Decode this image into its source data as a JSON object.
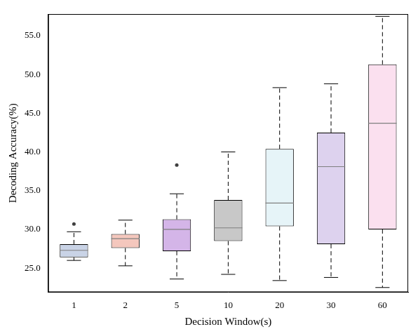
{
  "chart_data": {
    "type": "box",
    "x_label": "Decision Window(s)",
    "y_label": "Decoding Accuracy(%)",
    "categories": [
      "1",
      "2",
      "5",
      "10",
      "20",
      "30",
      "60"
    ],
    "whisker_low": [
      26.0,
      25.3,
      23.6,
      24.2,
      23.4,
      23.8,
      22.5
    ],
    "q1": [
      26.4,
      27.6,
      27.2,
      28.5,
      30.4,
      28.1,
      30.0
    ],
    "median": [
      27.3,
      28.8,
      30.0,
      30.2,
      33.4,
      38.1,
      43.7
    ],
    "q3": [
      28.1,
      29.4,
      31.3,
      33.8,
      40.4,
      42.5,
      51.3
    ],
    "whisker_high": [
      29.7,
      31.2,
      34.6,
      40.0,
      48.3,
      48.8,
      57.5
    ],
    "outliers": [
      [
        30.7
      ],
      [],
      [
        38.3
      ],
      [],
      [],
      [],
      []
    ],
    "colors": [
      "#c9d3e6",
      "#f4c7bd",
      "#d4b5e8",
      "#c8c8c8",
      "#e6f4f8",
      "#ddd2ee",
      "#fbe0ef"
    ],
    "ylim": [
      21.9,
      57.8
    ],
    "yticks": [
      {
        "value": 25,
        "label": "25.0"
      },
      {
        "value": 30,
        "label": "30.0"
      },
      {
        "value": 35,
        "label": "35.0"
      },
      {
        "value": 40,
        "label": "40.0"
      },
      {
        "value": 45,
        "label": "45.0"
      },
      {
        "value": 50,
        "label": "50.0"
      },
      {
        "value": 55,
        "label": "55.0"
      }
    ],
    "grid": false
  }
}
